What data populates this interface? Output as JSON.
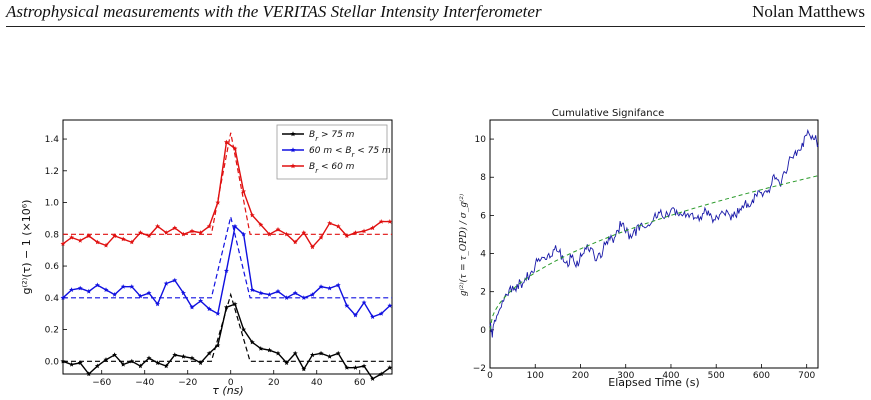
{
  "header": {
    "title": "Astrophysical measurements with the VERITAS Stellar Intensity Interferometer",
    "author": "Nolan Matthews"
  },
  "chart_data": [
    {
      "type": "line",
      "title": "",
      "xlabel": "τ (ns)",
      "ylabel": "g⁽²⁾(τ) − 1 (×10⁶)",
      "xlim": [
        -78,
        75
      ],
      "ylim": [
        -0.08,
        1.52
      ],
      "x_ticks": [
        "−60",
        "−40",
        "−20",
        "0",
        "20",
        "40",
        "60"
      ],
      "y_ticks": [
        "0.0",
        "0.2",
        "0.4",
        "0.6",
        "0.8",
        "1.0",
        "1.2",
        "1.4"
      ],
      "legend_position": "top-right",
      "grid": false,
      "series": [
        {
          "name": "B_r > 75 m",
          "legend_parts": [
            "B",
            "r",
            " > 75 m"
          ],
          "color": "#000000",
          "offset": 0.0,
          "x": [
            -78,
            -74,
            -70,
            -66,
            -62,
            -58,
            -54,
            -50,
            -46,
            -42,
            -38,
            -34,
            -30,
            -26,
            -22,
            -18,
            -14,
            -10,
            -6,
            -2,
            2,
            6,
            10,
            14,
            18,
            22,
            26,
            30,
            34,
            38,
            42,
            46,
            50,
            54,
            58,
            62,
            66,
            70,
            74
          ],
          "y": [
            0.0,
            -0.02,
            -0.01,
            -0.08,
            -0.03,
            0.01,
            0.04,
            -0.02,
            0.0,
            -0.03,
            0.02,
            -0.01,
            -0.03,
            0.04,
            0.03,
            0.02,
            -0.01,
            0.05,
            0.1,
            0.34,
            0.36,
            0.2,
            0.12,
            0.08,
            0.07,
            0.05,
            -0.01,
            0.05,
            -0.05,
            0.04,
            0.05,
            0.03,
            0.05,
            -0.04,
            -0.04,
            -0.03,
            -0.11,
            -0.08,
            -0.04
          ]
        },
        {
          "name": "60 m < B_r < 75 m",
          "legend_parts": [
            "60 m < B",
            "r",
            " < 75 m"
          ],
          "color": "#1010e0",
          "offset": 0.4,
          "x": [
            -78,
            -74,
            -70,
            -66,
            -62,
            -58,
            -54,
            -50,
            -46,
            -42,
            -38,
            -34,
            -30,
            -26,
            -22,
            -18,
            -14,
            -10,
            -6,
            -2,
            2,
            6,
            10,
            14,
            18,
            22,
            26,
            30,
            34,
            38,
            42,
            46,
            50,
            54,
            58,
            62,
            66,
            70,
            74
          ],
          "y": [
            0.4,
            0.45,
            0.46,
            0.44,
            0.48,
            0.45,
            0.42,
            0.47,
            0.47,
            0.41,
            0.43,
            0.36,
            0.49,
            0.51,
            0.43,
            0.34,
            0.38,
            0.33,
            0.3,
            0.57,
            0.85,
            0.8,
            0.45,
            0.43,
            0.42,
            0.44,
            0.4,
            0.43,
            0.4,
            0.42,
            0.47,
            0.46,
            0.48,
            0.35,
            0.29,
            0.37,
            0.28,
            0.3,
            0.35
          ]
        },
        {
          "name": "B_r < 60 m",
          "legend_parts": [
            "B",
            "r",
            " < 60 m"
          ],
          "color": "#e01010",
          "offset": 0.8,
          "x": [
            -78,
            -74,
            -70,
            -66,
            -62,
            -58,
            -54,
            -50,
            -46,
            -42,
            -38,
            -34,
            -30,
            -26,
            -22,
            -18,
            -14,
            -10,
            -6,
            -2,
            2,
            6,
            10,
            14,
            18,
            22,
            26,
            30,
            34,
            38,
            42,
            46,
            50,
            54,
            58,
            62,
            66,
            70,
            74
          ],
          "y": [
            0.74,
            0.78,
            0.76,
            0.79,
            0.75,
            0.73,
            0.79,
            0.77,
            0.75,
            0.81,
            0.79,
            0.85,
            0.81,
            0.84,
            0.8,
            0.82,
            0.81,
            0.85,
            1.0,
            1.38,
            1.34,
            1.07,
            0.92,
            0.86,
            0.8,
            0.83,
            0.8,
            0.75,
            0.81,
            0.72,
            0.78,
            0.87,
            0.85,
            0.79,
            0.81,
            0.82,
            0.84,
            0.88,
            0.88
          ]
        }
      ]
    },
    {
      "type": "line",
      "title": "Cumulative Signifance",
      "xlabel": "Elapsed Time (s)",
      "ylabel": "g⁽²⁾(τ = τ_OPD) / σ_g⁽²⁾",
      "xlim": [
        0,
        725
      ],
      "ylim": [
        -2,
        11
      ],
      "x_ticks": [
        "0",
        "100",
        "200",
        "300",
        "400",
        "500",
        "600",
        "700"
      ],
      "y_ticks": [
        "−2",
        "0",
        "2",
        "4",
        "6",
        "8",
        "10"
      ],
      "grid": false,
      "series": [
        {
          "color": "#1a1aa8",
          "x": [
            0,
            5,
            10,
            20,
            30,
            40,
            50,
            60,
            70,
            80,
            90,
            100,
            110,
            120,
            130,
            140,
            150,
            160,
            170,
            180,
            190,
            200,
            210,
            220,
            230,
            240,
            250,
            260,
            270,
            280,
            290,
            300,
            310,
            320,
            330,
            340,
            350,
            360,
            370,
            380,
            390,
            400,
            410,
            420,
            430,
            440,
            450,
            460,
            470,
            480,
            490,
            500,
            510,
            520,
            530,
            540,
            550,
            560,
            570,
            580,
            590,
            600,
            610,
            620,
            630,
            640,
            650,
            660,
            670,
            680,
            690,
            700,
            710,
            720,
            725
          ],
          "y": [
            0.2,
            -0.4,
            0.5,
            1.0,
            1.5,
            1.8,
            2.3,
            2.4,
            2.2,
            2.6,
            3.0,
            3.4,
            3.6,
            3.8,
            4.0,
            4.2,
            4.1,
            3.9,
            3.6,
            3.8,
            3.3,
            4.0,
            4.3,
            4.1,
            3.9,
            4.0,
            4.2,
            4.5,
            4.8,
            5.2,
            5.4,
            5.1,
            5.0,
            5.3,
            5.2,
            5.4,
            5.5,
            5.7,
            5.9,
            6.0,
            6.2,
            6.3,
            6.0,
            6.1,
            6.2,
            5.9,
            5.8,
            6.0,
            6.1,
            6.0,
            5.9,
            6.0,
            6.1,
            6.0,
            6.0,
            6.2,
            6.1,
            6.4,
            6.6,
            6.8,
            7.0,
            7.2,
            7.3,
            7.5,
            7.9,
            7.7,
            8.3,
            8.8,
            9.0,
            9.4,
            9.8,
            10.2,
            10.0,
            10.2,
            9.7
          ]
        },
        {
          "color": "#2a9a2a",
          "style": "dashed",
          "model": "k*sqrt(t)",
          "k": 0.3
        }
      ]
    }
  ]
}
